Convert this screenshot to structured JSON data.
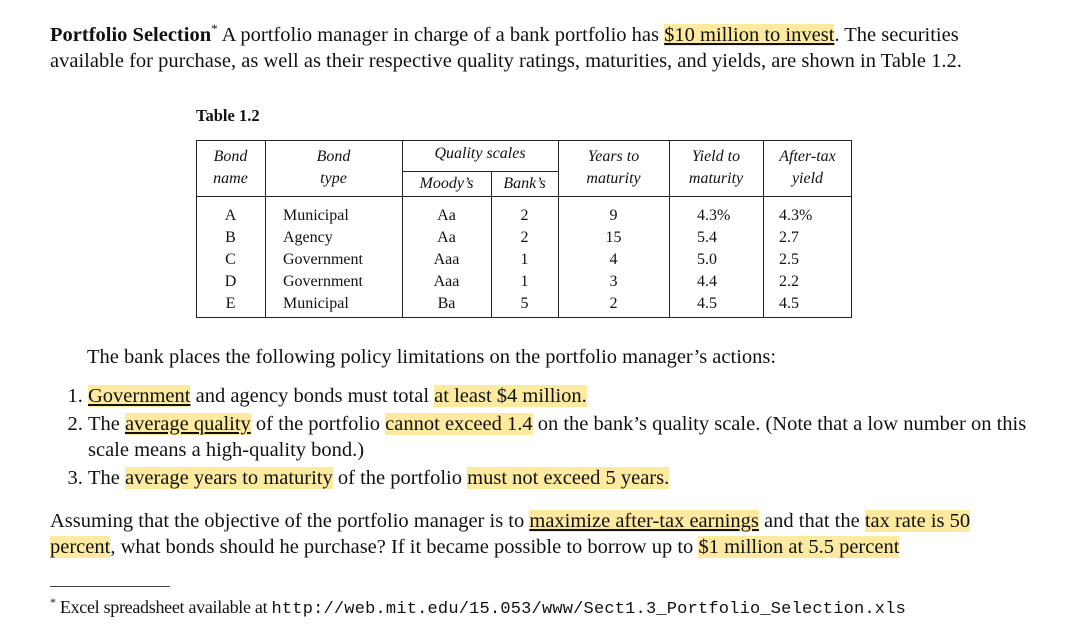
{
  "intro": {
    "title": "Portfolio Selection",
    "star": "*",
    "t1": "  A portfolio manager in charge of a bank portfolio has ",
    "h1": "$10 million to invest",
    "t2": ".  The securities available for purchase, as well as their respective quality ratings, maturities, and yields, are shown in Table 1.2."
  },
  "table": {
    "caption": "Table 1.2",
    "headers": {
      "bond_name": [
        "Bond",
        "name"
      ],
      "bond_type": [
        "Bond",
        "type"
      ],
      "quality": "Quality scales",
      "moodys": "Moody’s",
      "banks": "Bank’s",
      "years": [
        "Years to",
        "maturity"
      ],
      "yield": [
        "Yield to",
        "maturity"
      ],
      "after_tax": [
        "After-tax",
        "yield"
      ]
    },
    "rows": [
      {
        "name": "A",
        "type": "Municipal",
        "moody": "Aa",
        "bank": "2",
        "years": "9",
        "yield": "4.3%",
        "after": "4.3%"
      },
      {
        "name": "B",
        "type": "Agency",
        "moody": "Aa",
        "bank": "2",
        "years": "15",
        "yield": "5.4",
        "after": "2.7"
      },
      {
        "name": "C",
        "type": "Government",
        "moody": "Aaa",
        "bank": "1",
        "years": "4",
        "yield": "5.0",
        "after": "2.5"
      },
      {
        "name": "D",
        "type": "Government",
        "moody": "Aaa",
        "bank": "1",
        "years": "3",
        "yield": "4.4",
        "after": "2.2"
      },
      {
        "name": "E",
        "type": "Municipal",
        "moody": "Ba",
        "bank": "5",
        "years": "2",
        "yield": "4.5",
        "after": "4.5"
      }
    ]
  },
  "policy_intro": "The bank places the following policy limitations on the portfolio manager’s actions:",
  "list": {
    "i1_a": "Government",
    "i1_b": " and agency bonds must total ",
    "i1_c": "at least $4 million.",
    "i2_a": "The ",
    "i2_b": "average quality",
    "i2_c": " of the portfolio ",
    "i2_d": "cannot exceed 1.4",
    "i2_e": " on the bank’s quality scale.  (Note that a low number on this scale means a high-quality bond.)",
    "i3_a": "The ",
    "i3_b": "average years to maturity",
    "i3_c": " of the portfolio ",
    "i3_d": "must not exceed 5 years."
  },
  "closing": {
    "a": "Assuming that the objective of the portfolio manager is to ",
    "b": "maximize after-tax earnings",
    "c": " and that the ",
    "d": "tax rate is 50 percent",
    "e": ", what bonds should he purchase? If it became possible to borrow up to ",
    "f": "$1 million at 5.5 percent"
  },
  "footnote": {
    "star": "*",
    "text": " Excel spreadsheet available at ",
    "url": "http://web.mit.edu/15.053/www/Sect1.3_Portfolio_Selection.xls"
  },
  "colors": {
    "highlight": "#fdeaa1"
  }
}
